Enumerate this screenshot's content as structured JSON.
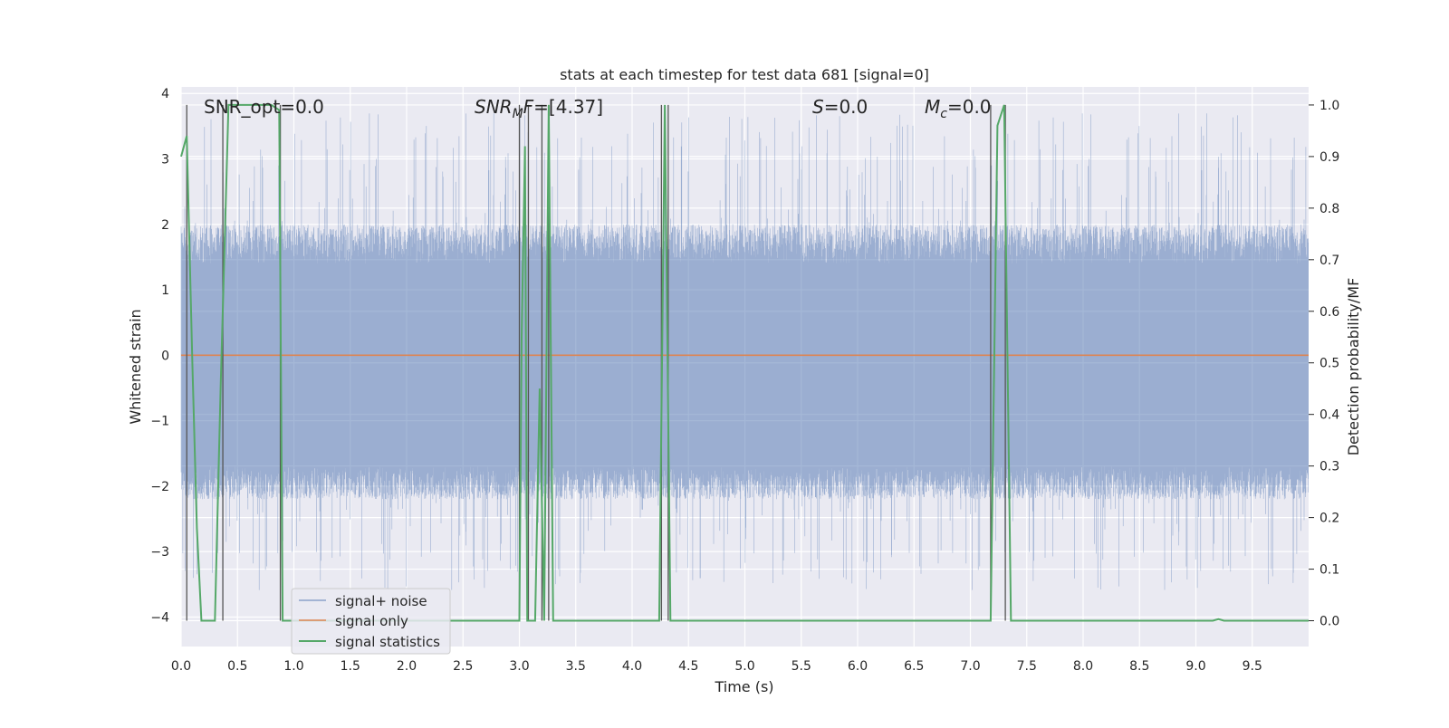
{
  "chart_data": {
    "type": "line",
    "title": "stats at each timestep for test data 681 [signal=0]",
    "xlabel": "Time (s)",
    "ylabel": "Whitened strain",
    "y2label": "Detection probability/MF",
    "xlim": [
      0,
      10
    ],
    "ylim": [
      -4.45,
      4.1
    ],
    "y2lim": [
      -0.05,
      1.035
    ],
    "x_ticks": [
      "0.0",
      "0.5",
      "1.0",
      "1.5",
      "2.0",
      "2.5",
      "3.0",
      "3.5",
      "4.0",
      "4.5",
      "5.0",
      "5.5",
      "6.0",
      "6.5",
      "7.0",
      "7.5",
      "8.0",
      "8.5",
      "9.0",
      "9.5"
    ],
    "y_ticks": [
      "4",
      "3",
      "2",
      "1",
      "0",
      "−1",
      "−2",
      "−3",
      "−4"
    ],
    "y2_ticks": [
      "1.0",
      "0.9",
      "0.8",
      "0.7",
      "0.6",
      "0.5",
      "0.4",
      "0.3",
      "0.2",
      "0.1",
      "0.0"
    ],
    "grid": true,
    "legend_position": "lower-left",
    "annotations": {
      "snr_opt": "SNR_opt=0.0",
      "snr_mf_label": "SNR",
      "snr_mf_sub": "M",
      "snr_mf_tail": "F",
      "snr_mf_value": "=[4.37]",
      "s_label": "S",
      "s_value": "=0.0",
      "mc_label": "M",
      "mc_sub": "c",
      "mc_value": "=0.0"
    },
    "series": [
      {
        "name": "signal+ noise",
        "color": "#4c72b0",
        "description_key": "noise",
        "noise_profile": {
          "band": [
            -1.7,
            1.4
          ],
          "peak_max": 3.7,
          "peak_min": -3.6
        }
      },
      {
        "name": "signal only",
        "color": "#dd8452",
        "values_constant": 0.0
      },
      {
        "name": "signal statistics",
        "color": "#55a868",
        "axis": "right",
        "points": [
          [
            0.0,
            0.9
          ],
          [
            0.05,
            0.94
          ],
          [
            0.1,
            0.5
          ],
          [
            0.14,
            0.18
          ],
          [
            0.18,
            0.0
          ],
          [
            0.3,
            0.0
          ],
          [
            0.35,
            0.45
          ],
          [
            0.42,
            1.0
          ],
          [
            0.8,
            1.0
          ],
          [
            0.87,
            0.99
          ],
          [
            0.9,
            0.0
          ],
          [
            2.9,
            0.0
          ],
          [
            2.95,
            0.0
          ],
          [
            3.0,
            0.0
          ],
          [
            3.02,
            0.55
          ],
          [
            3.05,
            0.92
          ],
          [
            3.07,
            0.0
          ],
          [
            3.14,
            0.0
          ],
          [
            3.18,
            0.45
          ],
          [
            3.22,
            0.0
          ],
          [
            3.26,
            1.0
          ],
          [
            3.3,
            0.0
          ],
          [
            4.24,
            0.0
          ],
          [
            4.29,
            1.0
          ],
          [
            4.34,
            0.0
          ],
          [
            7.18,
            0.0
          ],
          [
            7.24,
            0.96
          ],
          [
            7.3,
            1.0
          ],
          [
            7.36,
            0.0
          ],
          [
            9.15,
            0.0
          ],
          [
            9.2,
            0.003
          ],
          [
            9.25,
            0.0
          ],
          [
            10.0,
            0.0
          ]
        ]
      }
    ],
    "threshold_lines_x": [
      0.05,
      0.37,
      0.88,
      3.0,
      3.08,
      3.2,
      3.26,
      4.26,
      4.32,
      7.18,
      7.31
    ],
    "threshold_line_range_right_axis": [
      0.0,
      1.0
    ]
  }
}
